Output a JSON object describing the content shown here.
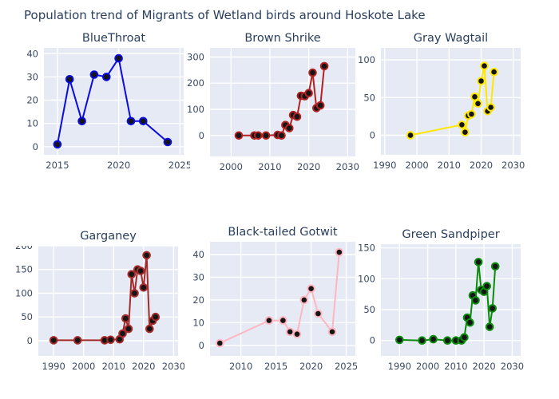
{
  "title": "Population trend of Migrants of Wetland birds around Hoskote Lake",
  "colors": {
    "text": "#2a3f5f",
    "tick_text": "#3b4a63",
    "plot_bg": "#e5eaf4",
    "grid": "#ffffff",
    "marker_fill": "#151515"
  },
  "chart_data": [
    {
      "type": "line",
      "title": "BlueThroat",
      "color": "#0b0be0",
      "x": [
        2015,
        2016,
        2017,
        2018,
        2019,
        2020,
        2021,
        2022,
        2024
      ],
      "y": [
        1,
        29,
        11,
        31,
        30,
        38,
        11,
        11,
        2
      ],
      "xticks": [
        2015,
        2020,
        2025
      ],
      "yticks": [
        0,
        10,
        20,
        30,
        40
      ],
      "xlim": [
        2013.9,
        2025.3
      ],
      "ylim": [
        -3.5,
        42.5
      ],
      "grid": true
    },
    {
      "type": "line",
      "title": "Brown Shrike",
      "color": "#b22222",
      "x": [
        2002,
        2006,
        2007,
        2009,
        2012,
        2013,
        2014,
        2015,
        2016,
        2017,
        2018,
        2019,
        2020,
        2021,
        2022,
        2023,
        2024
      ],
      "y": [
        0,
        0,
        0,
        0,
        2,
        0,
        40,
        28,
        78,
        72,
        152,
        150,
        162,
        240,
        105,
        115,
        265
      ],
      "xticks": [
        2000,
        2010,
        2020,
        2030
      ],
      "yticks": [
        0,
        100,
        200,
        300
      ],
      "xlim": [
        1994.6,
        2032.0
      ],
      "ylim": [
        -80,
        335
      ],
      "grid": true
    },
    {
      "type": "line",
      "title": "Gray Wagtail",
      "color": "#ffe800",
      "x": [
        1998,
        2014,
        2015,
        2016,
        2017,
        2018,
        2019,
        2020,
        2021,
        2022,
        2023,
        2024
      ],
      "y": [
        0,
        14,
        4,
        26,
        28,
        51,
        42,
        72,
        92,
        32,
        37,
        84
      ],
      "xticks": [
        1990,
        2000,
        2010,
        2020,
        2030
      ],
      "yticks": [
        0,
        50,
        100
      ],
      "xlim": [
        1988.8,
        2032.3
      ],
      "ylim": [
        -26,
        116
      ],
      "grid": true
    },
    {
      "type": "line",
      "title": "Garganey",
      "color": "#a52a2a",
      "x": [
        1990,
        1998,
        2007,
        2009,
        2012,
        2013,
        2014,
        2015,
        2016,
        2017,
        2018,
        2019,
        2020,
        2021,
        2022,
        2023,
        2024
      ],
      "y": [
        1,
        1,
        1,
        2,
        3,
        15,
        47,
        25,
        140,
        100,
        150,
        147,
        112,
        180,
        25,
        42,
        50
      ],
      "xticks": [
        1990,
        2000,
        2010,
        2020,
        2030
      ],
      "yticks": [
        0,
        50,
        100,
        150,
        200
      ],
      "xlim": [
        1984.9,
        2031.5
      ],
      "ylim": [
        -32,
        200
      ],
      "grid": true
    },
    {
      "type": "line",
      "title": "Black-tailed Gotwit",
      "color": "#ffb6c1",
      "x": [
        2007,
        2014,
        2016,
        2017,
        2018,
        2019,
        2020,
        2021,
        2023,
        2024
      ],
      "y": [
        1,
        11,
        11,
        6,
        5,
        20,
        25,
        14,
        6,
        41
      ],
      "xticks": [
        2010,
        2015,
        2020,
        2025
      ],
      "yticks": [
        0,
        10,
        20,
        30,
        40
      ],
      "xlim": [
        2005.6,
        2026.3
      ],
      "ylim": [
        -4.6,
        45.6
      ],
      "grid": true
    },
    {
      "type": "line",
      "title": "Green Sandpiper",
      "color": "#0c8c0c",
      "x": [
        1990,
        1998,
        2002,
        2007,
        2010,
        2012,
        2013,
        2014,
        2015,
        2016,
        2017,
        2018,
        2019,
        2020,
        2021,
        2022,
        2023,
        2024
      ],
      "y": [
        1,
        0,
        2,
        0,
        0,
        0,
        5,
        37,
        29,
        73,
        65,
        127,
        82,
        79,
        88,
        22,
        52,
        120
      ],
      "xticks": [
        1990,
        2000,
        2010,
        2020,
        2030
      ],
      "yticks": [
        0,
        50,
        100,
        150
      ],
      "xlim": [
        1983.4,
        2033.0
      ],
      "ylim": [
        -25,
        156
      ],
      "grid": true
    }
  ]
}
